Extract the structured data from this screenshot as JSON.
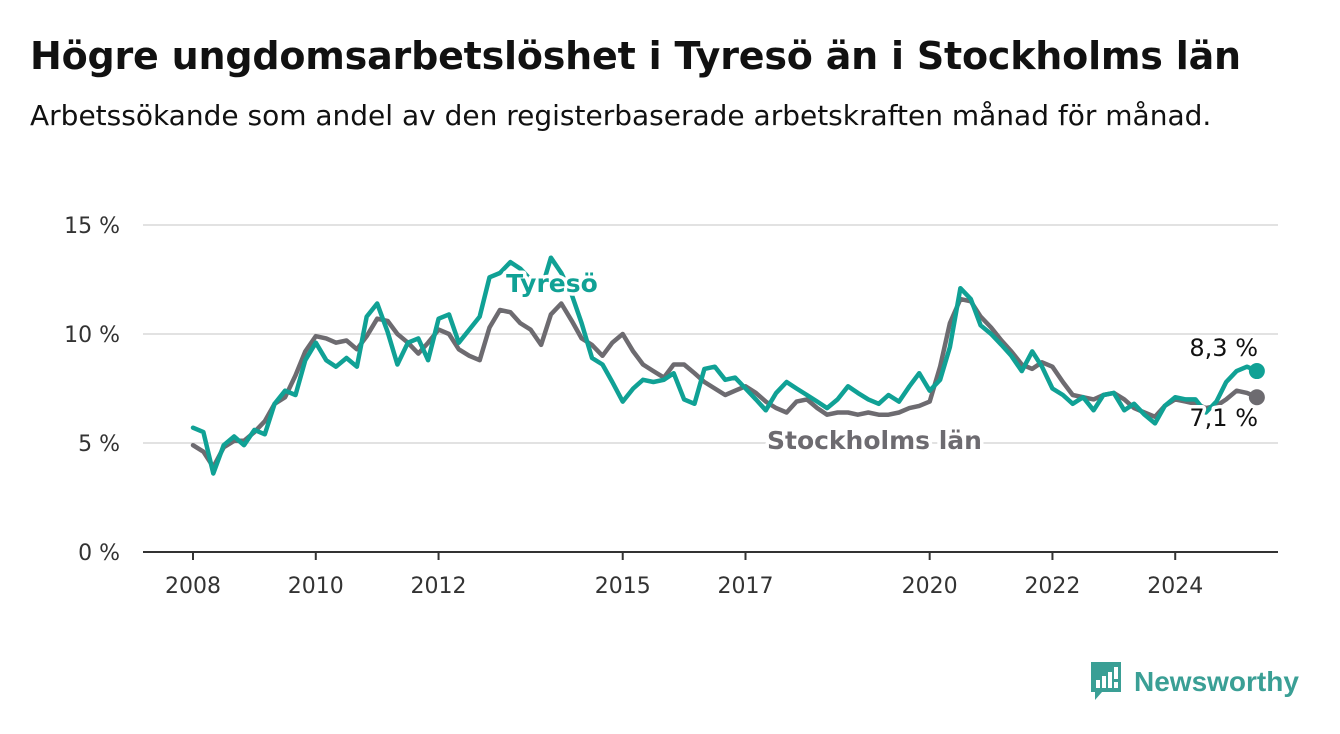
{
  "title": "Högre ungdomsarbetslöshet i Tyresö än i Stockholms län",
  "subtitle": "Arbetssökande som andel av den registerbaserade arbetskraften månad för månad.",
  "brand": {
    "name": "Newsworthy",
    "color": "#3a9f95",
    "icon": "bar-chart-badge-icon"
  },
  "chart_data": {
    "type": "line",
    "xlim": [
      2008,
      2025.7
    ],
    "ylim": [
      0,
      15
    ],
    "yticks": [
      0,
      5,
      10,
      15
    ],
    "ytick_labels": [
      "0 %",
      "5 %",
      "10 %",
      "15 %"
    ],
    "xticks": [
      2008,
      2010,
      2012,
      2015,
      2017,
      2020,
      2022,
      2024
    ],
    "xtick_labels": [
      "2008",
      "2010",
      "2012",
      "2015",
      "2017",
      "2020",
      "2022",
      "2024"
    ],
    "grid": true,
    "legend": "inline labels",
    "series": [
      {
        "name": "Stockholms län",
        "color": "#6d6b70",
        "end_label": "7,1 %",
        "points": [
          [
            2008.0,
            4.9
          ],
          [
            2008.17,
            4.6
          ],
          [
            2008.33,
            3.9
          ],
          [
            2008.5,
            4.8
          ],
          [
            2008.67,
            5.1
          ],
          [
            2008.83,
            5.1
          ],
          [
            2009.0,
            5.5
          ],
          [
            2009.17,
            6.0
          ],
          [
            2009.33,
            6.8
          ],
          [
            2009.5,
            7.1
          ],
          [
            2009.67,
            8.1
          ],
          [
            2009.83,
            9.2
          ],
          [
            2010.0,
            9.9
          ],
          [
            2010.17,
            9.8
          ],
          [
            2010.33,
            9.6
          ],
          [
            2010.5,
            9.7
          ],
          [
            2010.67,
            9.3
          ],
          [
            2010.83,
            9.9
          ],
          [
            2011.0,
            10.7
          ],
          [
            2011.17,
            10.6
          ],
          [
            2011.33,
            10.0
          ],
          [
            2011.5,
            9.6
          ],
          [
            2011.67,
            9.1
          ],
          [
            2011.83,
            9.6
          ],
          [
            2012.0,
            10.2
          ],
          [
            2012.17,
            10.0
          ],
          [
            2012.33,
            9.3
          ],
          [
            2012.5,
            9.0
          ],
          [
            2012.67,
            8.8
          ],
          [
            2012.83,
            10.3
          ],
          [
            2013.0,
            11.1
          ],
          [
            2013.17,
            11.0
          ],
          [
            2013.33,
            10.5
          ],
          [
            2013.5,
            10.2
          ],
          [
            2013.67,
            9.5
          ],
          [
            2013.83,
            10.9
          ],
          [
            2014.0,
            11.4
          ],
          [
            2014.17,
            10.6
          ],
          [
            2014.33,
            9.8
          ],
          [
            2014.5,
            9.5
          ],
          [
            2014.67,
            9.0
          ],
          [
            2014.83,
            9.6
          ],
          [
            2015.0,
            10.0
          ],
          [
            2015.17,
            9.2
          ],
          [
            2015.33,
            8.6
          ],
          [
            2015.5,
            8.3
          ],
          [
            2015.67,
            8.0
          ],
          [
            2015.83,
            8.6
          ],
          [
            2016.0,
            8.6
          ],
          [
            2016.17,
            8.2
          ],
          [
            2016.33,
            7.8
          ],
          [
            2016.5,
            7.5
          ],
          [
            2016.67,
            7.2
          ],
          [
            2016.83,
            7.4
          ],
          [
            2017.0,
            7.6
          ],
          [
            2017.17,
            7.3
          ],
          [
            2017.33,
            6.9
          ],
          [
            2017.5,
            6.6
          ],
          [
            2017.67,
            6.4
          ],
          [
            2017.83,
            6.9
          ],
          [
            2018.0,
            7.0
          ],
          [
            2018.17,
            6.6
          ],
          [
            2018.33,
            6.3
          ],
          [
            2018.5,
            6.4
          ],
          [
            2018.67,
            6.4
          ],
          [
            2018.83,
            6.3
          ],
          [
            2019.0,
            6.4
          ],
          [
            2019.17,
            6.3
          ],
          [
            2019.33,
            6.3
          ],
          [
            2019.5,
            6.4
          ],
          [
            2019.67,
            6.6
          ],
          [
            2019.83,
            6.7
          ],
          [
            2020.0,
            6.9
          ],
          [
            2020.17,
            8.5
          ],
          [
            2020.33,
            10.5
          ],
          [
            2020.5,
            11.6
          ],
          [
            2020.67,
            11.5
          ],
          [
            2020.83,
            10.8
          ],
          [
            2021.0,
            10.3
          ],
          [
            2021.17,
            9.7
          ],
          [
            2021.33,
            9.2
          ],
          [
            2021.5,
            8.6
          ],
          [
            2021.67,
            8.4
          ],
          [
            2021.83,
            8.7
          ],
          [
            2022.0,
            8.5
          ],
          [
            2022.17,
            7.8
          ],
          [
            2022.33,
            7.2
          ],
          [
            2022.5,
            7.1
          ],
          [
            2022.67,
            7.0
          ],
          [
            2022.83,
            7.2
          ],
          [
            2023.0,
            7.3
          ],
          [
            2023.17,
            7.0
          ],
          [
            2023.33,
            6.6
          ],
          [
            2023.5,
            6.4
          ],
          [
            2023.67,
            6.2
          ],
          [
            2023.83,
            6.7
          ],
          [
            2024.0,
            7.0
          ],
          [
            2024.17,
            6.9
          ],
          [
            2024.33,
            6.8
          ],
          [
            2024.5,
            6.6
          ],
          [
            2024.67,
            6.7
          ],
          [
            2024.83,
            7.0
          ],
          [
            2025.0,
            7.4
          ],
          [
            2025.17,
            7.3
          ],
          [
            2025.33,
            7.1
          ]
        ]
      },
      {
        "name": "Tyresö",
        "color": "#10a195",
        "end_label": "8,3 %",
        "points": [
          [
            2008.0,
            5.7
          ],
          [
            2008.17,
            5.5
          ],
          [
            2008.33,
            3.6
          ],
          [
            2008.5,
            4.9
          ],
          [
            2008.67,
            5.3
          ],
          [
            2008.83,
            4.9
          ],
          [
            2009.0,
            5.6
          ],
          [
            2009.17,
            5.4
          ],
          [
            2009.33,
            6.8
          ],
          [
            2009.5,
            7.4
          ],
          [
            2009.67,
            7.2
          ],
          [
            2009.83,
            8.8
          ],
          [
            2010.0,
            9.6
          ],
          [
            2010.17,
            8.8
          ],
          [
            2010.33,
            8.5
          ],
          [
            2010.5,
            8.9
          ],
          [
            2010.67,
            8.5
          ],
          [
            2010.83,
            10.8
          ],
          [
            2011.0,
            11.4
          ],
          [
            2011.17,
            10.1
          ],
          [
            2011.33,
            8.6
          ],
          [
            2011.5,
            9.6
          ],
          [
            2011.67,
            9.8
          ],
          [
            2011.83,
            8.8
          ],
          [
            2012.0,
            10.7
          ],
          [
            2012.17,
            10.9
          ],
          [
            2012.33,
            9.6
          ],
          [
            2012.5,
            10.2
          ],
          [
            2012.67,
            10.8
          ],
          [
            2012.83,
            12.6
          ],
          [
            2013.0,
            12.8
          ],
          [
            2013.17,
            13.3
          ],
          [
            2013.33,
            13.0
          ],
          [
            2013.5,
            12.5
          ],
          [
            2013.67,
            12.0
          ],
          [
            2013.83,
            13.5
          ],
          [
            2014.0,
            12.8
          ],
          [
            2014.17,
            11.8
          ],
          [
            2014.33,
            10.5
          ],
          [
            2014.5,
            8.9
          ],
          [
            2014.67,
            8.6
          ],
          [
            2014.83,
            7.8
          ],
          [
            2015.0,
            6.9
          ],
          [
            2015.17,
            7.5
          ],
          [
            2015.33,
            7.9
          ],
          [
            2015.5,
            7.8
          ],
          [
            2015.67,
            7.9
          ],
          [
            2015.83,
            8.2
          ],
          [
            2016.0,
            7.0
          ],
          [
            2016.17,
            6.8
          ],
          [
            2016.33,
            8.4
          ],
          [
            2016.5,
            8.5
          ],
          [
            2016.67,
            7.9
          ],
          [
            2016.83,
            8.0
          ],
          [
            2017.0,
            7.5
          ],
          [
            2017.17,
            7.0
          ],
          [
            2017.33,
            6.5
          ],
          [
            2017.5,
            7.3
          ],
          [
            2017.67,
            7.8
          ],
          [
            2017.83,
            7.5
          ],
          [
            2018.0,
            7.2
          ],
          [
            2018.17,
            6.9
          ],
          [
            2018.33,
            6.6
          ],
          [
            2018.5,
            7.0
          ],
          [
            2018.67,
            7.6
          ],
          [
            2018.83,
            7.3
          ],
          [
            2019.0,
            7.0
          ],
          [
            2019.17,
            6.8
          ],
          [
            2019.33,
            7.2
          ],
          [
            2019.5,
            6.9
          ],
          [
            2019.67,
            7.6
          ],
          [
            2019.83,
            8.2
          ],
          [
            2020.0,
            7.4
          ],
          [
            2020.17,
            7.9
          ],
          [
            2020.33,
            9.4
          ],
          [
            2020.5,
            12.1
          ],
          [
            2020.67,
            11.6
          ],
          [
            2020.83,
            10.4
          ],
          [
            2021.0,
            10.0
          ],
          [
            2021.17,
            9.5
          ],
          [
            2021.33,
            9.0
          ],
          [
            2021.5,
            8.3
          ],
          [
            2021.67,
            9.2
          ],
          [
            2021.83,
            8.5
          ],
          [
            2022.0,
            7.5
          ],
          [
            2022.17,
            7.2
          ],
          [
            2022.33,
            6.8
          ],
          [
            2022.5,
            7.1
          ],
          [
            2022.67,
            6.5
          ],
          [
            2022.83,
            7.2
          ],
          [
            2023.0,
            7.3
          ],
          [
            2023.17,
            6.5
          ],
          [
            2023.33,
            6.8
          ],
          [
            2023.5,
            6.3
          ],
          [
            2023.67,
            5.9
          ],
          [
            2023.83,
            6.7
          ],
          [
            2024.0,
            7.1
          ],
          [
            2024.17,
            7.0
          ],
          [
            2024.33,
            7.0
          ],
          [
            2024.5,
            6.4
          ],
          [
            2024.67,
            6.9
          ],
          [
            2024.83,
            7.8
          ],
          [
            2025.0,
            8.3
          ],
          [
            2025.17,
            8.5
          ],
          [
            2025.33,
            8.3
          ]
        ]
      }
    ]
  }
}
